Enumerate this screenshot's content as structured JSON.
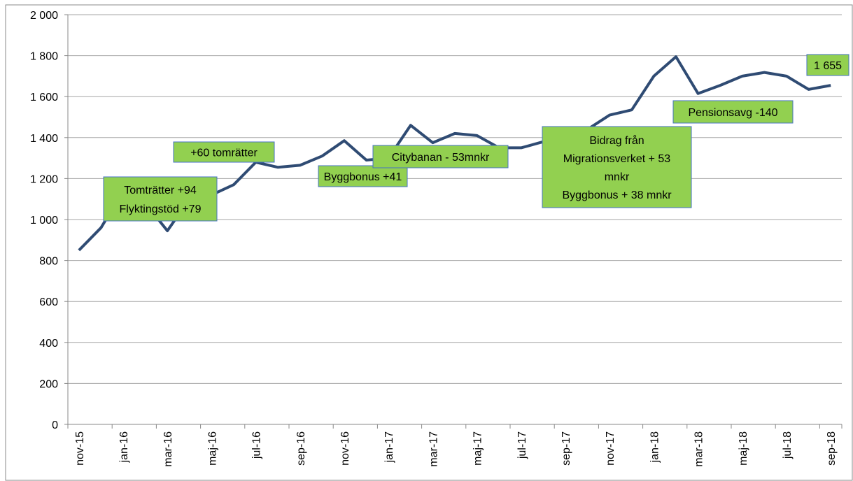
{
  "chart_data": {
    "type": "line",
    "categories": [
      "nov-15",
      null,
      "jan-16",
      null,
      "mar-16",
      null,
      "maj-16",
      null,
      "jul-16",
      null,
      "sep-16",
      null,
      "nov-16",
      null,
      "jan-17",
      null,
      "mar-17",
      null,
      "maj-17",
      null,
      "jul-17",
      null,
      "sep-17",
      null,
      "nov-17",
      null,
      "jan-18",
      null,
      "mar-18",
      null,
      "maj-18",
      null,
      "jul-18",
      null,
      "sep-18"
    ],
    "series": [
      {
        "color": "#2f4b73",
        "values": [
          850,
          960,
          1140,
          1080,
          945,
          1100,
          1120,
          1170,
          1280,
          1255,
          1265,
          1310,
          1385,
          1290,
          1300,
          1460,
          1375,
          1420,
          1410,
          1350,
          1350,
          1380,
          1400,
          1440,
          1510,
          1535,
          1700,
          1795,
          1615,
          1655,
          1700,
          1718,
          1700,
          1635,
          1655
        ],
        "value_labels": [
          null,
          null,
          null,
          null,
          null,
          null,
          null,
          null,
          null,
          null,
          null,
          null,
          null,
          null,
          null,
          null,
          null,
          null,
          null,
          null,
          null,
          null,
          null,
          null,
          null,
          null,
          null,
          null,
          null,
          null,
          null,
          null,
          null,
          null,
          "1 655"
        ]
      }
    ],
    "ylim": [
      0,
      2000
    ],
    "yticks": [
      0,
      200,
      400,
      600,
      800,
      {
        "value": 1000,
        "label": "1 000"
      },
      {
        "value": 1200,
        "label": "1 200"
      },
      {
        "value": 1400,
        "label": "1 400"
      },
      {
        "value": 1600,
        "label": "1 600"
      },
      {
        "value": 1800,
        "label": "1 800"
      },
      {
        "value": 2000,
        "label": "2 000"
      }
    ],
    "grid": true,
    "annotations": [
      [
        "Tomträtter +94",
        "Flyktingstöd +79"
      ],
      [
        "+60 tomrätter"
      ],
      [
        "Byggbonus +41"
      ],
      [
        "Citybanan - 53mnkr"
      ],
      [
        "Bidrag från",
        "Migrationsverket + 53",
        "mnkr",
        "Byggbonus + 38 mnkr"
      ],
      [
        "Pensionsavg -140"
      ]
    ]
  }
}
